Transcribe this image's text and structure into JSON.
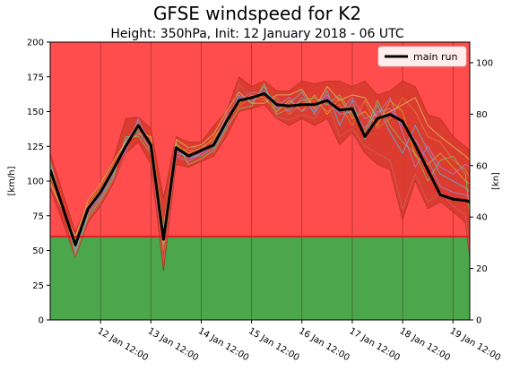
{
  "chart_data": {
    "type": "line",
    "title": "GFSE windspeed for K2",
    "subtitle": "Height: 350hPa, Init: 12 January 2018 - 06 UTC",
    "ylabel": "[km/h]",
    "ylabel_right": "[kn]",
    "ylim": [
      0,
      200
    ],
    "ylim_right": [
      0,
      108
    ],
    "yticks": [
      0,
      25,
      50,
      75,
      100,
      125,
      150,
      175,
      200
    ],
    "yticks_right": [
      0,
      20,
      40,
      60,
      80,
      100
    ],
    "xlim": [
      0,
      100
    ],
    "xtick_positions": [
      12,
      24,
      36,
      48,
      60,
      72,
      84,
      96
    ],
    "xtick_labels": [
      "12 Jan 12:00",
      "13 Jan 12:00",
      "14 Jan 12:00",
      "15 Jan 12:00",
      "16 Jan 12:00",
      "17 Jan 12:00",
      "18 Jan 12:00",
      "19 Jan 12:00"
    ],
    "threshold": 60,
    "colors": {
      "above_threshold": "#ff4d4d",
      "below_threshold": "#4ca64c",
      "threshold_line": "#e02020",
      "ensemble_band": "#d63a2a",
      "main_run": "#000000"
    },
    "legend_position": "top-right",
    "series": [
      {
        "name": "main run",
        "x": [
          0,
          6,
          9,
          12,
          15,
          18,
          21,
          24,
          27,
          30,
          33,
          36,
          39,
          42,
          45,
          48,
          51,
          54,
          57,
          60,
          63,
          66,
          69,
          72,
          75,
          78,
          81,
          84,
          87,
          90,
          93,
          96,
          99,
          100
        ],
        "y": [
          108,
          54,
          80,
          92,
          108,
          125,
          140,
          126,
          58,
          124,
          118,
          122,
          126,
          143,
          158,
          160,
          163,
          155,
          154,
          155,
          155,
          158,
          151,
          152,
          132,
          145,
          148,
          143,
          126,
          108,
          90,
          87,
          86,
          85
        ]
      }
    ],
    "ensemble_envelope": {
      "x": [
        0,
        6,
        9,
        12,
        15,
        18,
        21,
        24,
        27,
        30,
        33,
        36,
        39,
        42,
        45,
        48,
        51,
        54,
        57,
        60,
        63,
        66,
        69,
        72,
        75,
        78,
        81,
        84,
        87,
        90,
        93,
        96,
        99,
        100
      ],
      "upper": [
        120,
        63,
        86,
        98,
        115,
        145,
        146,
        138,
        88,
        132,
        128,
        128,
        140,
        150,
        175,
        168,
        172,
        165,
        165,
        172,
        170,
        172,
        172,
        168,
        172,
        162,
        165,
        172,
        168,
        148,
        145,
        132,
        125,
        122
      ],
      "lower": [
        95,
        45,
        70,
        82,
        98,
        120,
        128,
        112,
        35,
        112,
        110,
        114,
        118,
        132,
        150,
        152,
        155,
        145,
        140,
        145,
        140,
        145,
        126,
        135,
        120,
        112,
        108,
        72,
        100,
        80,
        85,
        78,
        70,
        44
      ]
    },
    "ensemble_members": [
      {
        "color": "#8a8adf",
        "y": [
          112,
          52,
          78,
          90,
          106,
          128,
          142,
          124,
          62,
          122,
          116,
          120,
          128,
          142,
          160,
          158,
          165,
          157,
          150,
          160,
          150,
          160,
          148,
          150,
          138,
          150,
          152,
          140,
          130,
          115,
          96,
          92,
          90,
          88
        ]
      },
      {
        "color": "#d9a820",
        "y": [
          104,
          56,
          82,
          94,
          110,
          124,
          138,
          128,
          56,
          126,
          120,
          124,
          130,
          146,
          156,
          162,
          160,
          150,
          158,
          150,
          162,
          148,
          160,
          145,
          150,
          140,
          158,
          150,
          118,
          112,
          120,
          110,
          100,
          98
        ]
      },
      {
        "color": "#4fb8d8",
        "y": [
          110,
          50,
          76,
          88,
          104,
          130,
          136,
          122,
          60,
          120,
          118,
          118,
          124,
          140,
          162,
          156,
          168,
          152,
          156,
          164,
          148,
          165,
          140,
          158,
          130,
          155,
          135,
          120,
          140,
          122,
          105,
          100,
          95,
          92
        ]
      },
      {
        "color": "#e07a3c",
        "y": [
          100,
          58,
          84,
          96,
          112,
          126,
          140,
          130,
          50,
          124,
          122,
          122,
          132,
          144,
          154,
          160,
          158,
          160,
          148,
          156,
          158,
          150,
          155,
          140,
          158,
          138,
          145,
          160,
          150,
          132,
          128,
          115,
          108,
          102
        ]
      },
      {
        "color": "#b07ad8",
        "y": [
          106,
          54,
          80,
          92,
          108,
          122,
          144,
          126,
          64,
          118,
          114,
          120,
          126,
          148,
          158,
          164,
          162,
          154,
          160,
          150,
          155,
          162,
          150,
          160,
          145,
          148,
          160,
          135,
          110,
          125,
          110,
          105,
          112,
          110
        ]
      },
      {
        "color": "#7fbf5a",
        "y": [
          114,
          48,
          74,
          86,
          102,
          132,
          132,
          120,
          54,
          128,
          112,
          116,
          122,
          138,
          152,
          154,
          170,
          148,
          152,
          158,
          160,
          155,
          162,
          148,
          135,
          158,
          140,
          128,
          120,
          100,
          115,
          118,
          105,
          75
        ]
      },
      {
        "color": "#d8c060",
        "y": [
          98,
          60,
          86,
          98,
          114,
          128,
          134,
          132,
          66,
          130,
          124,
          126,
          134,
          150,
          164,
          156,
          156,
          162,
          162,
          166,
          152,
          168,
          158,
          162,
          160,
          145,
          150,
          155,
          160,
          140,
          132,
          125,
          118,
          115
        ]
      },
      {
        "color": "#c86060",
        "y": [
          116,
          46,
          72,
          84,
          100,
          120,
          146,
          118,
          42,
          116,
          124,
          124,
          120,
          136,
          170,
          158,
          164,
          146,
          144,
          148,
          145,
          158,
          132,
          138,
          125,
          120,
          115,
          80,
          105,
          85,
          92,
          82,
          76,
          50
        ]
      }
    ]
  }
}
